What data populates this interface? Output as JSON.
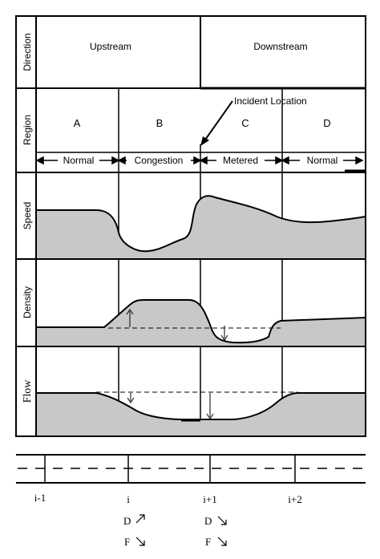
{
  "row_labels": {
    "direction": "Direction",
    "region": "Region",
    "speed": "Speed",
    "density": "Density",
    "flow": "Flow"
  },
  "direction": {
    "upstream": "Upstream",
    "downstream": "Downstream"
  },
  "regions": [
    "A",
    "B",
    "C",
    "D"
  ],
  "incident_label": "Incident Location",
  "states": [
    "Normal",
    "Congestion",
    "Metered",
    "Normal"
  ],
  "sections": {
    "labels": [
      "i-1",
      "i",
      "i+1",
      "i+2"
    ]
  },
  "trends": {
    "i": {
      "density": "D",
      "density_dir": "up",
      "flow": "F",
      "flow_dir": "down"
    },
    "i_plus_1": {
      "density": "D",
      "density_dir": "down",
      "flow": "F",
      "flow_dir": "down"
    }
  },
  "colors": {
    "fill": "#c8c8c8",
    "line": "#000000"
  }
}
